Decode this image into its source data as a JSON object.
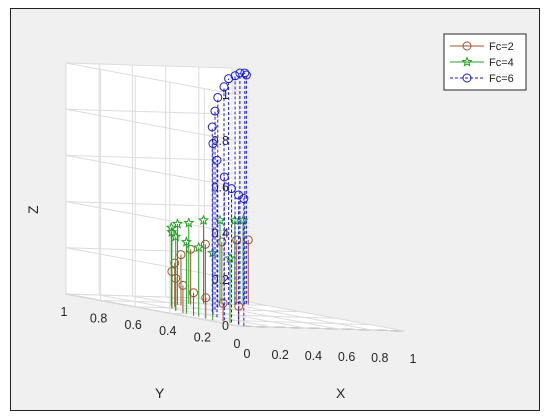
{
  "chart_data": {
    "type": "stem3",
    "title": "",
    "xlabel": "X",
    "ylabel": "Y",
    "zlabel": "Z",
    "xlim": [
      0,
      1
    ],
    "ylim": [
      0,
      1
    ],
    "zlim": [
      0,
      1
    ],
    "x_ticks": [
      "0",
      "0.2",
      "0.4",
      "0.6",
      "0.8",
      "1"
    ],
    "y_ticks": [
      "0",
      "0.2",
      "0.4",
      "0.6",
      "0.8",
      "1"
    ],
    "z_ticks": [
      "0",
      "0.2",
      "0.4",
      "0.6",
      "0.8",
      "1"
    ],
    "grid": true,
    "legend_position": "top-right",
    "series": [
      {
        "name": "Fc=2",
        "color": "#a0522d",
        "marker": "circle",
        "line": "solid",
        "x": [
          0.05,
          0.05,
          0.05,
          0.07,
          0.1,
          0.14,
          0.2,
          0.28,
          0.38,
          0.48,
          0.6,
          0.72,
          0.82,
          0.9
        ],
        "y": [
          0.05,
          0.14,
          0.24,
          0.33,
          0.42,
          0.5,
          0.58,
          0.64,
          0.7,
          0.74,
          0.77,
          0.79,
          0.8,
          0.81
        ],
        "z": [
          0.08,
          0.08,
          0.09,
          0.1,
          0.12,
          0.14,
          0.16,
          0.19,
          0.22,
          0.24,
          0.26,
          0.27,
          0.28,
          0.28
        ]
      },
      {
        "name": "Fc=4",
        "color": "#22a022",
        "marker": "star",
        "line": "solid",
        "x": [
          0.05,
          0.05,
          0.07,
          0.1,
          0.14,
          0.2,
          0.28,
          0.38,
          0.5,
          0.62,
          0.74,
          0.84,
          0.9
        ],
        "y": [
          0.1,
          0.2,
          0.3,
          0.4,
          0.5,
          0.58,
          0.66,
          0.72,
          0.77,
          0.8,
          0.82,
          0.83,
          0.84
        ],
        "z": [
          0.28,
          0.29,
          0.3,
          0.31,
          0.32,
          0.33,
          0.34,
          0.35,
          0.35,
          0.36,
          0.36,
          0.36,
          0.36
        ]
      },
      {
        "name": "Fc=6",
        "color": "#1a1ad8",
        "marker": "circle",
        "line": "dashed",
        "x": [
          0.05,
          0.06,
          0.08,
          0.12,
          0.18,
          0.26,
          0.36,
          0.46,
          0.56,
          0.66,
          0.74,
          0.81,
          0.86,
          0.9,
          0.92
        ],
        "y": [
          0.02,
          0.06,
          0.12,
          0.2,
          0.3,
          0.4,
          0.5,
          0.58,
          0.66,
          0.72,
          0.77,
          0.8,
          0.82,
          0.83,
          0.84
        ],
        "z": [
          0.55,
          0.56,
          0.58,
          0.62,
          0.68,
          0.74,
          0.8,
          0.86,
          0.91,
          0.95,
          0.98,
          0.99,
          1.0,
          1.0,
          0.99
        ]
      }
    ]
  }
}
